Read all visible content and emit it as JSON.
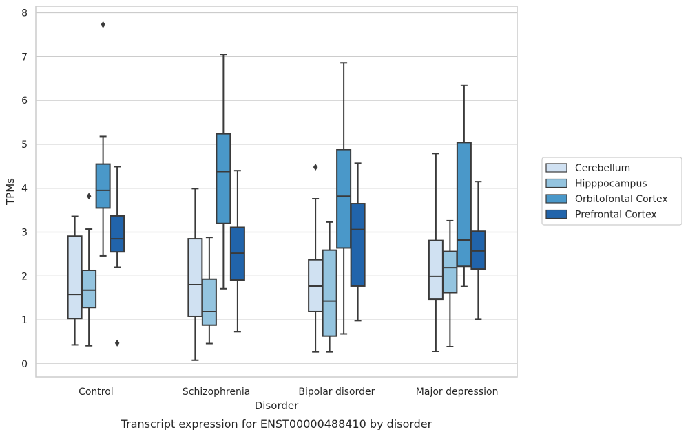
{
  "chart_data": {
    "type": "box",
    "caption": "Transcript expression for ENST00000488410 by disorder",
    "xlabel": "Disorder",
    "ylabel": "TPMs",
    "ylim": [
      -0.3,
      8.15
    ],
    "yticks": [
      "0",
      "1",
      "2",
      "3",
      "4",
      "5",
      "6",
      "7",
      "8"
    ],
    "grid": "horizontal",
    "legend_position": "right",
    "categories": [
      "Control",
      "Schizophrenia",
      "Bipolar disorder",
      "Major depression"
    ],
    "series": [
      {
        "name": "Cerebellum",
        "color": "#d0e1f2",
        "boxes": [
          {
            "min": 0.43,
            "q1": 1.03,
            "median": 1.58,
            "q3": 2.91,
            "max": 3.36,
            "outliers": []
          },
          {
            "min": 0.08,
            "q1": 1.08,
            "median": 1.8,
            "q3": 2.85,
            "max": 3.99,
            "outliers": []
          },
          {
            "min": 0.27,
            "q1": 1.19,
            "median": 1.77,
            "q3": 2.37,
            "max": 3.76,
            "outliers": [
              4.48
            ]
          },
          {
            "min": 0.28,
            "q1": 1.47,
            "median": 1.99,
            "q3": 2.81,
            "max": 4.79,
            "outliers": []
          }
        ]
      },
      {
        "name": "Hipppocampus",
        "color": "#94c4df",
        "boxes": [
          {
            "min": 0.41,
            "q1": 1.28,
            "median": 1.68,
            "q3": 2.13,
            "max": 3.07,
            "outliers": [
              3.82
            ]
          },
          {
            "min": 0.46,
            "q1": 0.88,
            "median": 1.19,
            "q3": 1.93,
            "max": 2.88,
            "outliers": []
          },
          {
            "min": 0.27,
            "q1": 0.63,
            "median": 1.43,
            "q3": 2.59,
            "max": 3.23,
            "outliers": []
          },
          {
            "min": 0.39,
            "q1": 1.62,
            "median": 2.19,
            "q3": 2.56,
            "max": 3.26,
            "outliers": []
          }
        ]
      },
      {
        "name": "Orbitofontal Cortex",
        "color": "#4a98c9",
        "boxes": [
          {
            "min": 2.46,
            "q1": 3.55,
            "median": 3.95,
            "q3": 4.55,
            "max": 5.18,
            "outliers": [
              7.73
            ]
          },
          {
            "min": 1.71,
            "q1": 3.2,
            "median": 4.38,
            "q3": 5.24,
            "max": 7.05,
            "outliers": []
          },
          {
            "min": 0.68,
            "q1": 2.64,
            "median": 3.82,
            "q3": 4.88,
            "max": 6.86,
            "outliers": []
          },
          {
            "min": 1.76,
            "q1": 2.22,
            "median": 2.82,
            "q3": 5.04,
            "max": 6.35,
            "outliers": []
          }
        ]
      },
      {
        "name": "Prefrontal Cortex",
        "color": "#2164ab",
        "boxes": [
          {
            "min": 2.2,
            "q1": 2.55,
            "median": 2.85,
            "q3": 3.37,
            "max": 4.49,
            "outliers": [
              0.47
            ]
          },
          {
            "min": 0.73,
            "q1": 1.91,
            "median": 2.52,
            "q3": 3.11,
            "max": 4.4,
            "outliers": []
          },
          {
            "min": 0.98,
            "q1": 1.77,
            "median": 3.06,
            "q3": 3.65,
            "max": 4.57,
            "outliers": []
          },
          {
            "min": 1.01,
            "q1": 2.16,
            "median": 2.57,
            "q3": 3.02,
            "max": 4.15,
            "outliers": []
          }
        ]
      }
    ]
  }
}
